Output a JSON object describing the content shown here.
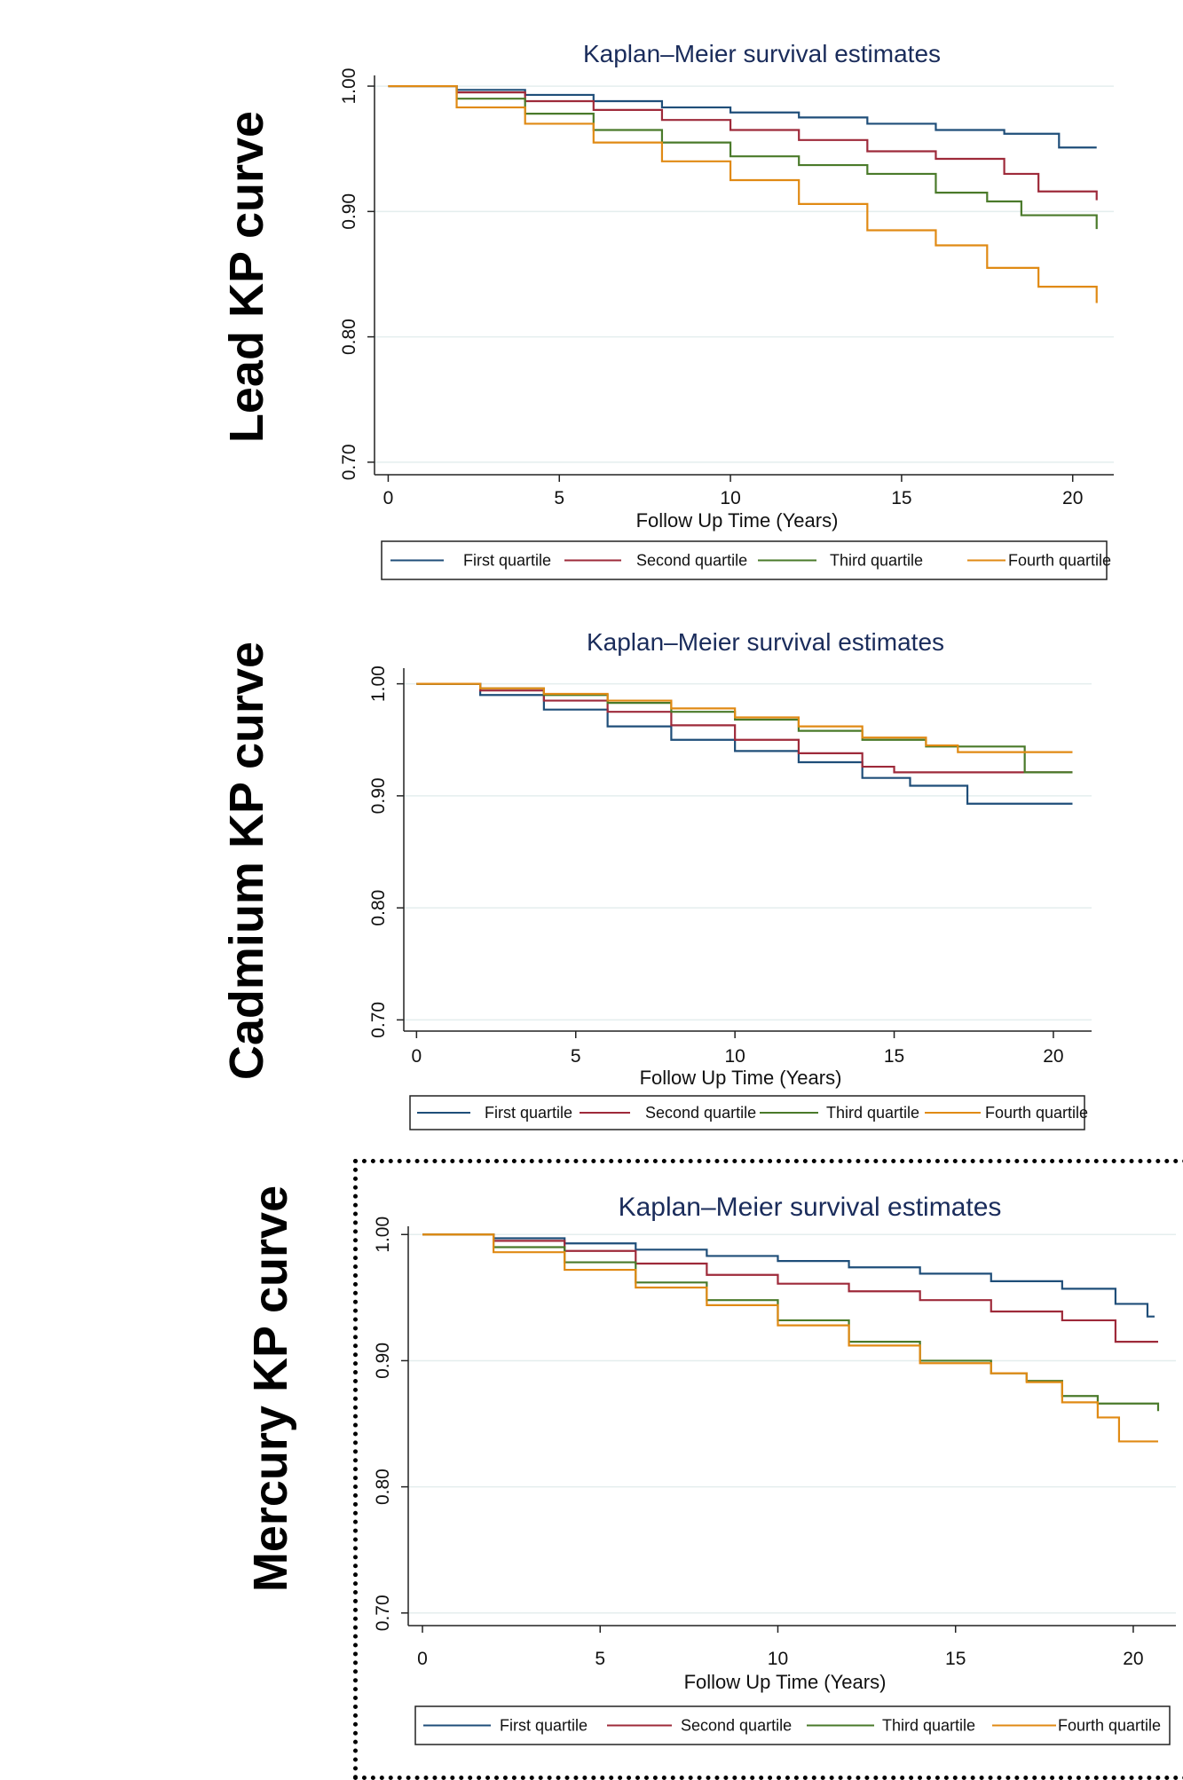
{
  "panels": [
    {
      "label": "Lead KP curve"
    },
    {
      "label": "Cadmium KP curve"
    },
    {
      "label": "Mercury KP curve"
    }
  ],
  "chart_data": [
    {
      "type": "line",
      "step": true,
      "title": "Kaplan–Meier survival estimates",
      "xlabel": "Follow Up Time (Years)",
      "ylabel": "",
      "xlim": [
        -0.4,
        21.2
      ],
      "ylim": [
        0.69,
        1.005
      ],
      "xticks": [
        0,
        5,
        10,
        15,
        20
      ],
      "yticks": [
        1.0,
        0.9,
        0.8,
        0.7
      ],
      "ytick_labels": [
        "1.00",
        "0.90",
        "0.80",
        "0.70"
      ],
      "grid": true,
      "legend_position": "bottom",
      "series": [
        {
          "name": "First quartile",
          "color": "#1f4e79",
          "x": [
            0,
            2,
            4,
            6,
            8,
            10,
            12,
            14,
            16,
            18,
            19.6,
            20.7
          ],
          "y": [
            1.0,
            0.997,
            0.993,
            0.988,
            0.983,
            0.979,
            0.975,
            0.97,
            0.965,
            0.962,
            0.951,
            0.951
          ]
        },
        {
          "name": "Second quartile",
          "color": "#9e2a3a",
          "x": [
            0,
            2,
            4,
            6,
            8,
            10,
            12,
            14,
            16,
            18,
            19,
            20.7
          ],
          "y": [
            1.0,
            0.995,
            0.988,
            0.981,
            0.973,
            0.965,
            0.957,
            0.948,
            0.942,
            0.93,
            0.916,
            0.909
          ]
        },
        {
          "name": "Third quartile",
          "color": "#4a7a2a",
          "x": [
            0,
            2,
            4,
            6,
            8,
            10,
            12,
            14,
            16,
            17.5,
            18.5,
            20.7
          ],
          "y": [
            1.0,
            0.99,
            0.978,
            0.965,
            0.955,
            0.944,
            0.937,
            0.93,
            0.915,
            0.908,
            0.897,
            0.886
          ]
        },
        {
          "name": "Fourth quartile",
          "color": "#e08a14",
          "x": [
            0,
            2,
            4,
            6,
            8,
            10,
            12,
            14,
            16,
            17.5,
            19,
            20.7
          ],
          "y": [
            1.0,
            0.983,
            0.97,
            0.955,
            0.94,
            0.925,
            0.906,
            0.885,
            0.873,
            0.855,
            0.84,
            0.827
          ]
        }
      ]
    },
    {
      "type": "line",
      "step": true,
      "title": "Kaplan–Meier survival estimates",
      "xlabel": "Follow Up Time (Years)",
      "ylabel": "",
      "xlim": [
        -0.4,
        21.2
      ],
      "ylim": [
        0.69,
        1.01
      ],
      "xticks": [
        0,
        5,
        10,
        15,
        20
      ],
      "yticks": [
        1.0,
        0.9,
        0.8,
        0.7
      ],
      "ytick_labels": [
        "1.00",
        "0.90",
        "0.80",
        "0.70"
      ],
      "grid": true,
      "legend_position": "bottom",
      "series": [
        {
          "name": "First quartile",
          "color": "#1f4e79",
          "x": [
            0,
            2,
            4,
            6,
            8,
            10,
            12,
            14,
            15.5,
            17.3,
            20.6
          ],
          "y": [
            1.0,
            0.99,
            0.977,
            0.962,
            0.95,
            0.94,
            0.93,
            0.916,
            0.909,
            0.893,
            0.893
          ]
        },
        {
          "name": "Second quartile",
          "color": "#9e2a3a",
          "x": [
            0,
            2,
            4,
            6,
            8,
            10,
            12,
            14,
            15,
            20.6
          ],
          "y": [
            1.0,
            0.994,
            0.985,
            0.975,
            0.963,
            0.95,
            0.938,
            0.926,
            0.921,
            0.921
          ]
        },
        {
          "name": "Third quartile",
          "color": "#4a7a2a",
          "x": [
            0,
            2,
            4,
            6,
            8,
            10,
            12,
            14,
            16,
            19,
            19.1,
            20.6
          ],
          "y": [
            1.0,
            0.996,
            0.99,
            0.983,
            0.975,
            0.968,
            0.958,
            0.95,
            0.944,
            0.944,
            0.921,
            0.921
          ]
        },
        {
          "name": "Fourth quartile",
          "color": "#e08a14",
          "x": [
            0,
            2,
            4,
            6,
            8,
            10,
            12,
            14,
            16,
            17,
            20.6
          ],
          "y": [
            1.0,
            0.996,
            0.991,
            0.985,
            0.978,
            0.97,
            0.962,
            0.952,
            0.945,
            0.939,
            0.939
          ]
        }
      ]
    },
    {
      "type": "line",
      "step": true,
      "title": "Kaplan–Meier survival estimates",
      "xlabel": "Follow Up Time (Years)",
      "ylabel": "",
      "xlim": [
        -0.4,
        21.2
      ],
      "ylim": [
        0.69,
        1.003
      ],
      "xticks": [
        0,
        5,
        10,
        15,
        20
      ],
      "yticks": [
        1.0,
        0.9,
        0.8,
        0.7
      ],
      "ytick_labels": [
        "1.00",
        "0.90",
        "0.80",
        "0.70"
      ],
      "grid": true,
      "legend_position": "bottom",
      "series": [
        {
          "name": "First quartile",
          "color": "#1f4e79",
          "x": [
            0,
            2,
            4,
            6,
            8,
            10,
            12,
            14,
            16,
            18,
            19.5,
            20.4,
            20.6
          ],
          "y": [
            1.0,
            0.997,
            0.993,
            0.988,
            0.983,
            0.979,
            0.974,
            0.969,
            0.963,
            0.957,
            0.945,
            0.935,
            0.935
          ]
        },
        {
          "name": "Second quartile",
          "color": "#9e2a3a",
          "x": [
            0,
            2,
            4,
            6,
            8,
            10,
            12,
            14,
            16,
            18,
            19.5,
            20.7
          ],
          "y": [
            1.0,
            0.995,
            0.987,
            0.977,
            0.968,
            0.961,
            0.955,
            0.948,
            0.939,
            0.932,
            0.915,
            0.915
          ]
        },
        {
          "name": "Third quartile",
          "color": "#4a7a2a",
          "x": [
            0,
            2,
            4,
            6,
            8,
            10,
            12,
            14,
            16,
            17,
            18,
            19,
            20.7
          ],
          "y": [
            1.0,
            0.99,
            0.978,
            0.962,
            0.948,
            0.932,
            0.915,
            0.9,
            0.89,
            0.884,
            0.872,
            0.866,
            0.86
          ]
        },
        {
          "name": "Fourth quartile",
          "color": "#e08a14",
          "x": [
            0,
            2,
            4,
            6,
            8,
            10,
            12,
            14,
            16,
            17,
            18,
            19,
            19.6,
            20.7
          ],
          "y": [
            1.0,
            0.986,
            0.972,
            0.958,
            0.944,
            0.928,
            0.912,
            0.898,
            0.89,
            0.883,
            0.867,
            0.855,
            0.836,
            0.836
          ]
        }
      ]
    }
  ],
  "decor": {
    "dashed_box_color": "#000000",
    "grid_color": "#e4eeee",
    "title_color": "#1a2c5b"
  }
}
